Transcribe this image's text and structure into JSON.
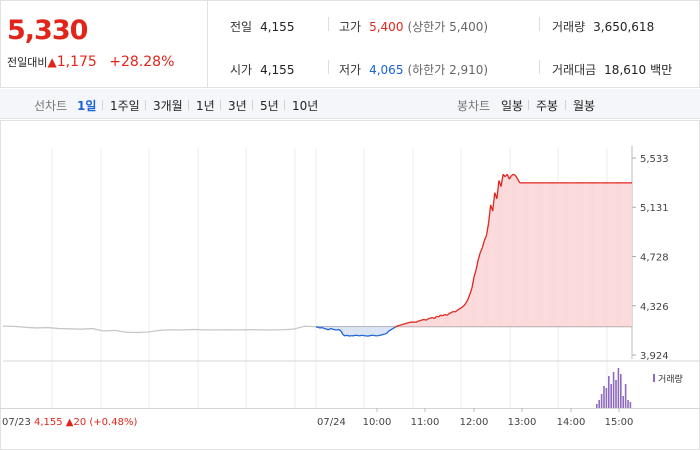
{
  "summary": {
    "current_price": "5,330",
    "change_label": "전일대비",
    "change_arrow": "▲",
    "change_amount": "1,175",
    "change_rate": "+28.28%",
    "prev_close": {
      "label": "전일",
      "value": "4,155"
    },
    "open": {
      "label": "시가",
      "value": "4,155"
    },
    "high": {
      "label": "고가",
      "value": "5,400",
      "limit_text": "(상한가 5,400)"
    },
    "low": {
      "label": "저가",
      "value": "4,065",
      "limit_text": "(하한가 2,910)"
    },
    "volume": {
      "label": "거래량",
      "value": "3,650,618"
    },
    "trade_amount": {
      "label": "거래대금",
      "value": "18,610",
      "unit": "백만"
    }
  },
  "tabs": {
    "line_label": "선차트",
    "line_items": [
      "1일",
      "1주일",
      "3개월",
      "1년",
      "3년",
      "5년",
      "10년"
    ],
    "active_item": "1일",
    "candle_label": "봉차트",
    "candle_items": [
      "일봉",
      "주봉",
      "월봉"
    ]
  },
  "colors": {
    "up": "#e1251b",
    "down": "#1a62d6",
    "volume": "#8e6bbf",
    "area_up": "#fbd9db",
    "area_down": "#d9e3f4"
  },
  "chart_data": {
    "type": "line",
    "y_ticks": [
      "5,533",
      "5,131",
      "4,728",
      "4,326",
      "3,924"
    ],
    "ylim": [
      3924,
      5533
    ],
    "baseline": 4155,
    "prev_series": {
      "date": "07/23",
      "values": [
        4160,
        4158,
        4150,
        4145,
        4148,
        4140,
        4138,
        4135,
        4140,
        4120,
        4125,
        4110,
        4108,
        4112,
        4125,
        4130,
        4128,
        4132,
        4130,
        4128,
        4130,
        4129,
        4131,
        4130,
        4128,
        4130,
        4135,
        4160,
        4155
      ]
    },
    "today_series": {
      "date": "07/24",
      "times": [
        0,
        5,
        10,
        15,
        20,
        25,
        30,
        35,
        40,
        45,
        50,
        55,
        60,
        65,
        70,
        75,
        80,
        85,
        90,
        95,
        100,
        105,
        110,
        115,
        120,
        125,
        130,
        135,
        140,
        145,
        150,
        155,
        160,
        165,
        170,
        175,
        180,
        185,
        190,
        195,
        200,
        205,
        210,
        215,
        220,
        225,
        230,
        235,
        240,
        245,
        250,
        255,
        260,
        265,
        270,
        275,
        280,
        285,
        290,
        295,
        300,
        305,
        310,
        315,
        320,
        325,
        330,
        335,
        340,
        345,
        350,
        355,
        360,
        365,
        370,
        375,
        380,
        385,
        390,
        395,
        400,
        405,
        410,
        415,
        420,
        425,
        430,
        435,
        440,
        445,
        450,
        455,
        460,
        465,
        470,
        475,
        480,
        485,
        490,
        495,
        500,
        505,
        510,
        515,
        520,
        525,
        530,
        535,
        540,
        545,
        550,
        555,
        560,
        565,
        570,
        575,
        580,
        585,
        590,
        595,
        600,
        605,
        610,
        615,
        620,
        625,
        630,
        635,
        640,
        645,
        650,
        655,
        660,
        665,
        670,
        675,
        680,
        685,
        690,
        695,
        700,
        705,
        710,
        715,
        720,
        725,
        730,
        735,
        740,
        745,
        750,
        755,
        760
      ],
      "values": [
        4155,
        4150,
        4145,
        4148,
        4140,
        4135,
        4130,
        4140,
        4135,
        4130,
        4128,
        4132,
        4120,
        4090,
        4080,
        4085,
        4078,
        4082,
        4080,
        4085,
        4083,
        4080,
        4085,
        4082,
        4080,
        4078,
        4082,
        4085,
        4083,
        4080,
        4082,
        4085,
        4090,
        4095,
        4100,
        4120,
        4130,
        4140,
        4150,
        4160,
        4165,
        4170,
        4175,
        4180,
        4185,
        4190,
        4192,
        4195,
        4190,
        4200,
        4205,
        4210,
        4215,
        4208,
        4220,
        4225,
        4230,
        4222,
        4240,
        4235,
        4250,
        4245,
        4255,
        4248,
        4262,
        4270,
        4280,
        4275,
        4290,
        4300,
        4310,
        4325,
        4345,
        4375,
        4420,
        4470,
        4560,
        4620,
        4700,
        4760,
        4800,
        4860,
        4900,
        5000,
        5150,
        5100,
        5250,
        5200,
        5350,
        5300,
        5400,
        5380,
        5400,
        5360,
        5390,
        5400,
        5390,
        5360,
        5330,
        5330,
        5330,
        5330,
        5330,
        5330,
        5330,
        5330,
        5330,
        5330,
        5330,
        5330,
        5330,
        5330,
        5330,
        5330,
        5330,
        5330,
        5330,
        5330,
        5330,
        5330,
        5330,
        5330,
        5330,
        5330,
        5330,
        5330,
        5330,
        5330,
        5330,
        5330,
        5330,
        5330,
        5330,
        5330,
        5330,
        5330,
        5330,
        5330,
        5330,
        5330,
        5330,
        5330,
        5330,
        5330,
        5330,
        5330,
        5330,
        5330,
        5330,
        5330,
        5330,
        5330,
        5330
      ]
    },
    "time_ticks": [
      "10:00",
      "11:00",
      "12:00",
      "13:00",
      "14:00",
      "15:00"
    ],
    "volume_label": "거래량",
    "volume_spikes": [
      0.1,
      0.2,
      0.35,
      0.55,
      0.5,
      0.8,
      0.6,
      0.9,
      0.7,
      1.0,
      0.85,
      0.3,
      0.6,
      0.2,
      0.15
    ],
    "prev_footer": {
      "close": "4,155",
      "arrow": "▲",
      "change": "20",
      "rate": "(+0.48%)"
    }
  }
}
